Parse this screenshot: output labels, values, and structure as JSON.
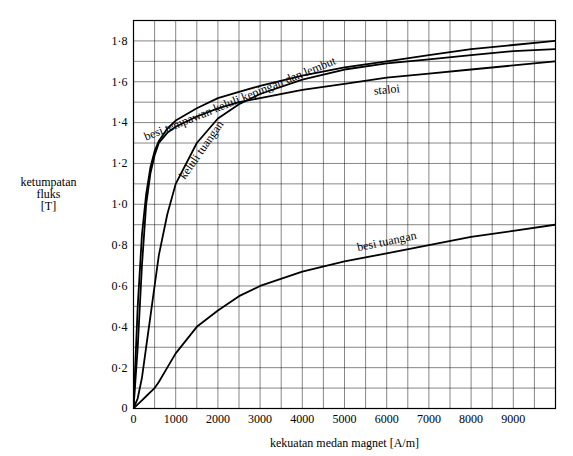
{
  "chart_data": {
    "type": "line",
    "x_label": "kekuatan medan magnet [A/m]",
    "y_label": "ketumpatan fluks [T]",
    "x": [
      0,
      100,
      200,
      300,
      400,
      500,
      600,
      800,
      1000,
      1500,
      2000,
      2500,
      3000,
      4000,
      5000,
      6000,
      7000,
      8000,
      9000,
      10000
    ],
    "series": [
      {
        "name": "besi tempawan keluli kepingan dan lembut",
        "color": "#000000",
        "values": [
          0,
          0.5,
          0.85,
          1.05,
          1.18,
          1.26,
          1.31,
          1.37,
          1.41,
          1.47,
          1.52,
          1.55,
          1.58,
          1.63,
          1.67,
          1.7,
          1.73,
          1.76,
          1.78,
          1.8
        ]
      },
      {
        "name": "keluli tuangan",
        "color": "#000000",
        "values": [
          0,
          0.05,
          0.15,
          0.3,
          0.45,
          0.6,
          0.75,
          0.95,
          1.1,
          1.3,
          1.42,
          1.49,
          1.54,
          1.61,
          1.66,
          1.69,
          1.71,
          1.73,
          1.75,
          1.76
        ]
      },
      {
        "name": "staloi",
        "color": "#000000",
        "values": [
          0,
          0.3,
          0.7,
          1.0,
          1.15,
          1.24,
          1.3,
          1.35,
          1.38,
          1.43,
          1.47,
          1.5,
          1.52,
          1.56,
          1.59,
          1.62,
          1.64,
          1.66,
          1.68,
          1.7
        ]
      },
      {
        "name": "besi tuangan",
        "color": "#000000",
        "values": [
          0,
          0.02,
          0.04,
          0.06,
          0.08,
          0.1,
          0.13,
          0.2,
          0.27,
          0.4,
          0.48,
          0.55,
          0.6,
          0.67,
          0.72,
          0.76,
          0.8,
          0.84,
          0.87,
          0.9
        ]
      }
    ],
    "xlim": [
      0,
      10000
    ],
    "xticks": [
      0,
      1000,
      2000,
      3000,
      4000,
      5000,
      6000,
      7000,
      8000,
      9000
    ],
    "ylim": [
      0,
      1.9
    ],
    "yticks": [
      0,
      {
        "value": 0.2,
        "label": "0·2"
      },
      {
        "value": 0.4,
        "label": "0·4"
      },
      {
        "value": 0.6,
        "label": "0·6"
      },
      {
        "value": 0.8,
        "label": "0·8"
      },
      {
        "value": 1.0,
        "label": "1·0"
      },
      {
        "value": 1.2,
        "label": "1·2"
      },
      {
        "value": 1.4,
        "label": "1·4"
      },
      {
        "value": 1.6,
        "label": "1·6"
      },
      {
        "value": 1.8,
        "label": "1·8"
      }
    ],
    "grid": true
  }
}
